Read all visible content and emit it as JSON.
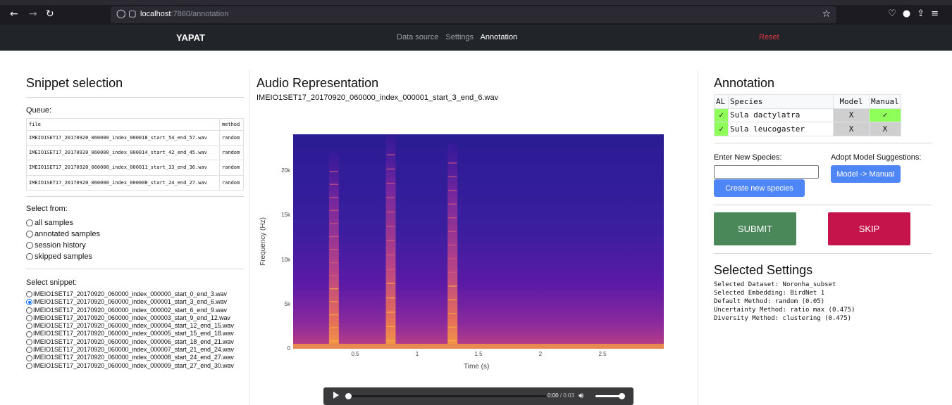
{
  "browser": {
    "url_host": "localhost",
    "url_rest": ":7860/annotation"
  },
  "navbar": {
    "brand": "YAPAT",
    "links": [
      "Data source",
      "Settings",
      "Annotation"
    ],
    "active": "Annotation",
    "reset": "Reset"
  },
  "snippet_selection": {
    "title": "Snippet selection",
    "queue_label": "Queue:",
    "queue_headers": [
      "file",
      "method"
    ],
    "queue_rows": [
      [
        "IMEIO1SET17_20170920_060000_index_000018_start_54_end_57.wav",
        "random"
      ],
      [
        "IMEIO1SET17_20170920_060000_index_000014_start_42_end_45.wav",
        "random"
      ],
      [
        "IMEIO1SET17_20170920_060000_index_000011_start_33_end_36.wav",
        "random"
      ],
      [
        "IMEIO1SET17_20170920_060000_index_000008_start_24_end_27.wav",
        "random"
      ]
    ],
    "select_from_label": "Select from:",
    "select_from_options": [
      "all samples",
      "annotated samples",
      "session history",
      "skipped samples"
    ],
    "select_snippet_label": "Select snippet:",
    "snippets": [
      "IMEIO1SET17_20170920_060000_index_000000_start_0_end_3.wav",
      "IMEIO1SET17_20170920_060000_index_000001_start_3_end_6.wav",
      "IMEIO1SET17_20170920_060000_index_000002_start_6_end_9.wav",
      "IMEIO1SET17_20170920_060000_index_000003_start_9_end_12.wav",
      "IMEIO1SET17_20170920_060000_index_000004_start_12_end_15.wav",
      "IMEIO1SET17_20170920_060000_index_000005_start_15_end_18.wav",
      "IMEIO1SET17_20170920_060000_index_000006_start_18_end_21.wav",
      "IMEIO1SET17_20170920_060000_index_000007_start_21_end_24.wav",
      "IMEIO1SET17_20170920_060000_index_000008_start_24_end_27.wav",
      "IMEIO1SET17_20170920_060000_index_000009_start_27_end_30.wav"
    ],
    "selected_snippet_index": 1
  },
  "audio": {
    "title": "Audio Representation",
    "filename": "IMEIO1SET17_20170920_060000_index_000001_start_3_end_6.wav",
    "y_axis_label": "Frequency (Hz)",
    "x_axis_label": "Time (s)",
    "y_ticks": [
      "0",
      "5k",
      "10k",
      "15k",
      "20k"
    ],
    "x_ticks": [
      "0.5",
      "1",
      "1.5",
      "2",
      "2.5"
    ],
    "player_time": "0:00",
    "player_duration": "/ 0:03"
  },
  "chart_data": {
    "type": "heatmap",
    "title": "",
    "xlabel": "Time (s)",
    "ylabel": "Frequency (Hz)",
    "xlim": [
      0,
      3
    ],
    "ylim": [
      0,
      24000
    ],
    "x_ticks": [
      0.5,
      1,
      1.5,
      2,
      2.5
    ],
    "y_ticks": [
      0,
      5000,
      10000,
      15000,
      20000
    ],
    "y_tick_labels": [
      "0",
      "5k",
      "10k",
      "15k",
      "20k"
    ],
    "colorscale": [
      "#0d0887",
      "#46039f",
      "#7201a8",
      "#9c179e",
      "#bd3786",
      "#d8576b",
      "#ed7953",
      "#fb9f3a",
      "#fdca26"
    ],
    "calls": [
      {
        "t_center": 0.33,
        "f_top": 22000
      },
      {
        "t_center": 0.79,
        "f_top": 24000
      },
      {
        "t_center": 1.29,
        "f_top": 23000
      }
    ]
  },
  "annotation": {
    "title": "Annotation",
    "headers": [
      "AL",
      "Species",
      "Model",
      "Manual"
    ],
    "rows": [
      {
        "al": "✓",
        "species": "Sula dactylatra",
        "model": "X",
        "manual": "✓"
      },
      {
        "al": "✓",
        "species": "Sula leucogaster",
        "model": "X",
        "manual": "X"
      }
    ],
    "enter_species_label": "Enter New Species:",
    "new_species_value": "",
    "create_button": "Create new species",
    "adopt_label": "Adopt Model Suggestions:",
    "adopt_button": "Model -> Manual",
    "submit_button": "SUBMIT",
    "skip_button": "SKIP",
    "colors": {
      "green": "#8fff5a",
      "grey": "#cfcfcf",
      "submit": "#4a8759",
      "skip": "#c4144b",
      "blue": "#4f86f7"
    }
  },
  "selected_settings": {
    "title": "Selected Settings",
    "lines": [
      "Selected Dataset: Noronha_subset",
      "Selected Embedding: BirdNet 1",
      "Default Method: random (0.05)",
      "Uncertainty Method: ratio max (0.475)",
      "Diversity Method: clustering (0.475)"
    ]
  }
}
